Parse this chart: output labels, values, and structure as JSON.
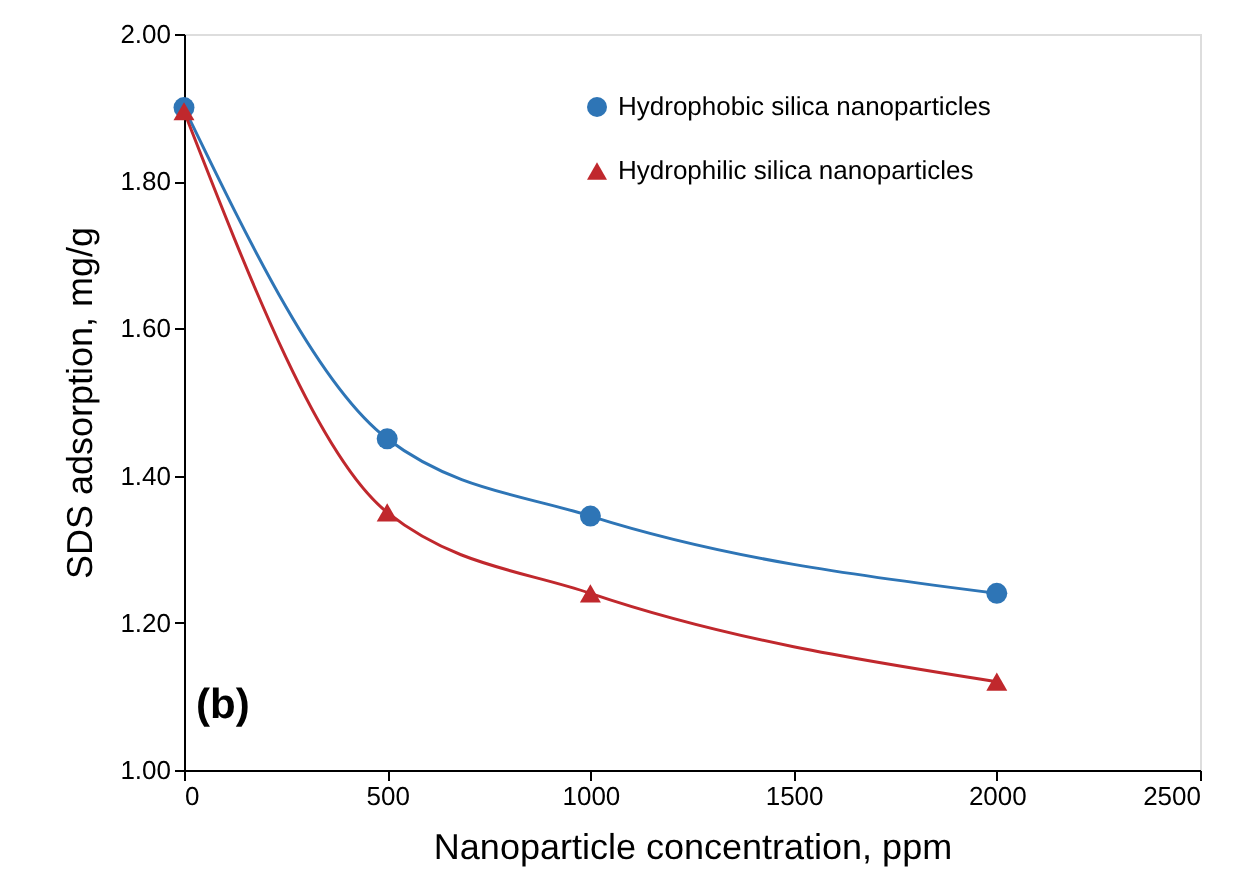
{
  "chart_data": {
    "type": "line",
    "xlabel": "Nanoparticle concentration, ppm",
    "ylabel": "SDS adsorption, mg/g",
    "x": [
      0,
      500,
      1000,
      2000
    ],
    "series": [
      {
        "name": "Hydrophobic silica nanoparticles",
        "color": "#2e75b6",
        "marker": "circle",
        "values": [
          1.9,
          1.45,
          1.345,
          1.24
        ]
      },
      {
        "name": "Hydrophilic silica nanoparticles",
        "color": "#c0282d",
        "marker": "triangle",
        "values": [
          1.895,
          1.35,
          1.24,
          1.12
        ]
      }
    ],
    "xlim": [
      0,
      2500
    ],
    "xticks": [
      0,
      500,
      1000,
      1500,
      2000,
      2500
    ],
    "ylim": [
      1.0,
      2.0
    ],
    "yticks": [
      {
        "value": 1.0,
        "label": "1.00"
      },
      {
        "value": 1.2,
        "label": "1.20"
      },
      {
        "value": 1.4,
        "label": "1.40"
      },
      {
        "value": 1.6,
        "label": "1.60"
      },
      {
        "value": 1.8,
        "label": "1.80"
      },
      {
        "value": 2.0,
        "label": "2.00"
      }
    ],
    "grid": false,
    "legend": "top right",
    "line_style": "solid",
    "annotations": [
      "(b)"
    ]
  }
}
